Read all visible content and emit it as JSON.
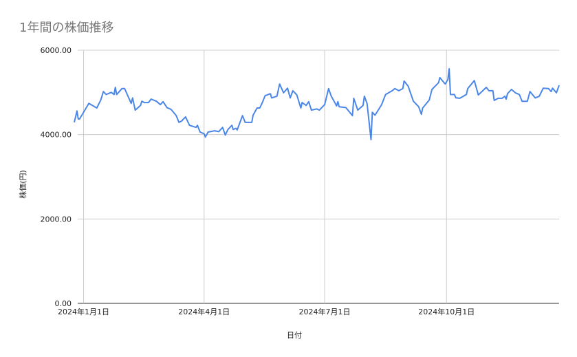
{
  "chart_data": {
    "type": "line",
    "title": "1年間の株価推移",
    "xlabel": "日付",
    "ylabel": "株価(円)",
    "ylim": [
      0,
      6000
    ],
    "xlim": [
      "2023-12-25",
      "2024-12-25"
    ],
    "y_ticks": [
      "0.00",
      "2000.00",
      "4000.00",
      "6000.00"
    ],
    "x_ticks": [
      {
        "date": "2024-01-01",
        "label": "2024年1月1日"
      },
      {
        "date": "2024-04-01",
        "label": "2024年4月1日"
      },
      {
        "date": "2024-07-01",
        "label": "2024年7月1日"
      },
      {
        "date": "2024-10-01",
        "label": "2024年10月1日"
      }
    ],
    "grid": true,
    "legend": "none",
    "line_color": "#4a86e8",
    "series": [
      {
        "x": [
          "2023-12-25",
          "2023-12-27",
          "2023-12-28",
          "2023-12-29",
          "2024-01-05",
          "2024-01-11",
          "2024-01-14",
          "2024-01-16",
          "2024-01-18",
          "2024-01-22",
          "2024-01-24",
          "2024-01-25",
          "2024-01-26",
          "2024-01-30",
          "2024-02-01",
          "2024-02-03",
          "2024-02-06",
          "2024-02-07",
          "2024-02-09",
          "2024-02-13",
          "2024-02-14",
          "2024-02-16",
          "2024-02-19",
          "2024-02-21",
          "2024-02-25",
          "2024-02-28",
          "2024-03-01",
          "2024-03-04",
          "2024-03-07",
          "2024-03-11",
          "2024-03-13",
          "2024-03-15",
          "2024-03-18",
          "2024-03-21",
          "2024-03-26",
          "2024-03-27",
          "2024-03-29",
          "2024-04-01",
          "2024-04-02",
          "2024-04-04",
          "2024-04-09",
          "2024-04-12",
          "2024-04-15",
          "2024-04-17",
          "2024-04-19",
          "2024-04-22",
          "2024-04-23",
          "2024-04-25",
          "2024-04-26",
          "2024-04-30",
          "2024-05-02",
          "2024-05-07",
          "2024-05-08",
          "2024-05-11",
          "2024-05-13",
          "2024-05-15",
          "2024-05-17",
          "2024-05-21",
          "2024-05-22",
          "2024-05-26",
          "2024-05-28",
          "2024-05-31",
          "2024-06-03",
          "2024-06-05",
          "2024-06-07",
          "2024-06-10",
          "2024-06-13",
          "2024-06-14",
          "2024-06-17",
          "2024-06-19",
          "2024-06-21",
          "2024-06-25",
          "2024-06-27",
          "2024-07-01",
          "2024-07-04",
          "2024-07-06",
          "2024-07-09",
          "2024-07-10",
          "2024-07-11",
          "2024-07-12",
          "2024-07-17",
          "2024-07-22",
          "2024-07-23",
          "2024-07-26",
          "2024-07-30",
          "2024-07-31",
          "2024-08-02",
          "2024-08-05",
          "2024-08-06",
          "2024-08-08",
          "2024-08-13",
          "2024-08-16",
          "2024-08-21",
          "2024-08-23",
          "2024-08-26",
          "2024-08-29",
          "2024-08-30",
          "2024-09-02",
          "2024-09-06",
          "2024-09-10",
          "2024-09-12",
          "2024-09-13",
          "2024-09-18",
          "2024-09-20",
          "2024-09-25",
          "2024-09-26",
          "2024-09-30",
          "2024-10-02",
          "2024-10-03",
          "2024-10-04",
          "2024-10-07",
          "2024-10-08",
          "2024-10-11",
          "2024-10-16",
          "2024-10-17",
          "2024-10-22",
          "2024-10-25",
          "2024-10-31",
          "2024-11-02",
          "2024-11-05",
          "2024-11-06",
          "2024-11-09",
          "2024-11-12",
          "2024-11-14",
          "2024-11-15",
          "2024-11-16",
          "2024-11-19",
          "2024-11-22",
          "2024-11-25",
          "2024-11-27",
          "2024-12-01",
          "2024-12-03",
          "2024-12-07",
          "2024-12-10",
          "2024-12-13",
          "2024-12-17",
          "2024-12-19",
          "2024-12-20",
          "2024-12-23",
          "2024-12-25"
        ],
        "values": [
          4290,
          4560,
          4370,
          4370,
          4740,
          4630,
          4820,
          5020,
          4950,
          5000,
          4950,
          5120,
          4950,
          5090,
          5090,
          4950,
          4740,
          4870,
          4580,
          4690,
          4790,
          4760,
          4760,
          4840,
          4790,
          4710,
          4780,
          4640,
          4600,
          4450,
          4290,
          4320,
          4420,
          4220,
          4170,
          4220,
          4060,
          4020,
          3940,
          4060,
          4090,
          4070,
          4170,
          3990,
          4120,
          4220,
          4120,
          4150,
          4110,
          4450,
          4290,
          4290,
          4460,
          4630,
          4630,
          4760,
          4920,
          4970,
          4870,
          4910,
          5200,
          4990,
          5100,
          4870,
          5040,
          4940,
          4630,
          4760,
          4690,
          4780,
          4580,
          4610,
          4580,
          4710,
          5090,
          4910,
          4740,
          4680,
          4780,
          4660,
          4640,
          4450,
          4860,
          4580,
          4690,
          4910,
          4740,
          3880,
          4530,
          4460,
          4710,
          4950,
          5040,
          5090,
          5040,
          5090,
          5270,
          5150,
          4790,
          4660,
          4480,
          4630,
          4820,
          5070,
          5230,
          5350,
          5200,
          5300,
          5560,
          4950,
          4950,
          4870,
          4860,
          4950,
          5090,
          5280,
          4940,
          5120,
          5040,
          5040,
          4810,
          4860,
          4860,
          4910,
          4840,
          4970,
          5070,
          4990,
          4950,
          4790,
          4790,
          5020,
          4870,
          4910,
          5100,
          5090,
          5020,
          5100,
          4990,
          5170
        ]
      }
    ]
  }
}
